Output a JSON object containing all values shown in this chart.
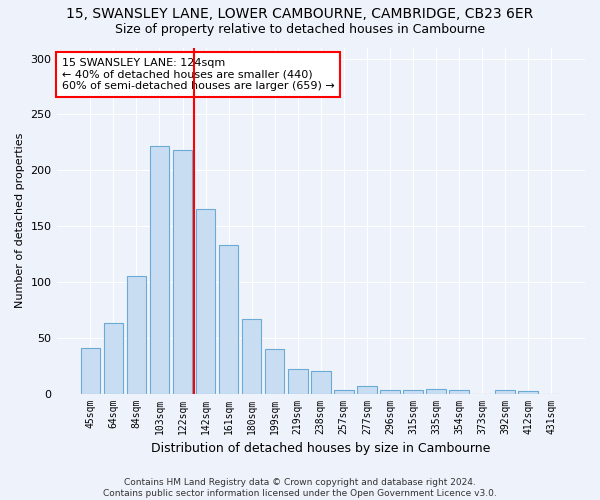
{
  "title": "15, SWANSLEY LANE, LOWER CAMBOURNE, CAMBRIDGE, CB23 6ER",
  "subtitle": "Size of property relative to detached houses in Cambourne",
  "xlabel": "Distribution of detached houses by size in Cambourne",
  "ylabel": "Number of detached properties",
  "bar_labels": [
    "45sqm",
    "64sqm",
    "84sqm",
    "103sqm",
    "122sqm",
    "142sqm",
    "161sqm",
    "180sqm",
    "199sqm",
    "219sqm",
    "238sqm",
    "257sqm",
    "277sqm",
    "296sqm",
    "315sqm",
    "335sqm",
    "354sqm",
    "373sqm",
    "392sqm",
    "412sqm",
    "431sqm"
  ],
  "bar_values": [
    41,
    63,
    105,
    222,
    218,
    165,
    133,
    67,
    40,
    22,
    20,
    3,
    7,
    3,
    3,
    4,
    3,
    0,
    3,
    2,
    0
  ],
  "bar_color": "#c9ddf2",
  "bar_edge_color": "#6aaad4",
  "property_line_x": 4.5,
  "annotation_text": "15 SWANSLEY LANE: 124sqm\n← 40% of detached houses are smaller (440)\n60% of semi-detached houses are larger (659) →",
  "annotation_box_color": "white",
  "annotation_box_edge_color": "red",
  "line_color": "red",
  "ylim": [
    0,
    310
  ],
  "yticks": [
    0,
    50,
    100,
    150,
    200,
    250,
    300
  ],
  "footer": "Contains HM Land Registry data © Crown copyright and database right 2024.\nContains public sector information licensed under the Open Government Licence v3.0.",
  "bg_color": "#eef2fa",
  "title_fontsize": 10,
  "subtitle_fontsize": 9,
  "grid_color": "white"
}
